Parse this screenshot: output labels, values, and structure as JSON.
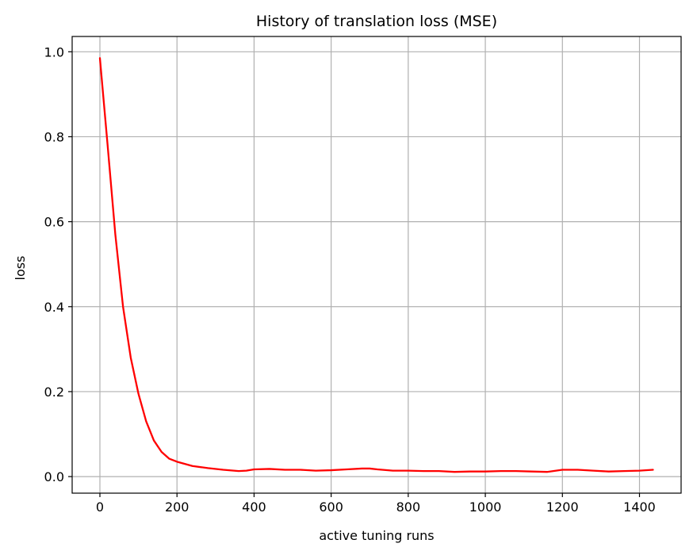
{
  "chart_data": {
    "type": "line",
    "title": "History of translation loss (MSE)",
    "xlabel": "active tuning runs",
    "ylabel": "loss",
    "xlim": [
      -72,
      1508
    ],
    "ylim": [
      -0.039,
      1.036
    ],
    "xticks": [
      0,
      200,
      400,
      600,
      800,
      1000,
      1200,
      1400
    ],
    "xtick_labels": [
      "0",
      "200",
      "400",
      "600",
      "800",
      "1000",
      "1200",
      "1400"
    ],
    "yticks": [
      0.0,
      0.2,
      0.4,
      0.6,
      0.8,
      1.0
    ],
    "ytick_labels": [
      "0.0",
      "0.2",
      "0.4",
      "0.6",
      "0.8",
      "1.0"
    ],
    "grid": true,
    "series": [
      {
        "color": "#ff0000",
        "x": [
          0,
          20,
          40,
          60,
          80,
          100,
          120,
          140,
          160,
          180,
          200,
          240,
          280,
          320,
          360,
          380,
          400,
          440,
          480,
          520,
          560,
          600,
          640,
          680,
          700,
          720,
          760,
          800,
          840,
          880,
          920,
          960,
          1000,
          1040,
          1080,
          1120,
          1160,
          1200,
          1240,
          1280,
          1320,
          1360,
          1400,
          1435
        ],
        "y": [
          0.985,
          0.78,
          0.57,
          0.4,
          0.28,
          0.195,
          0.13,
          0.085,
          0.058,
          0.042,
          0.035,
          0.025,
          0.02,
          0.016,
          0.013,
          0.014,
          0.017,
          0.018,
          0.016,
          0.016,
          0.014,
          0.015,
          0.017,
          0.019,
          0.019,
          0.017,
          0.014,
          0.014,
          0.013,
          0.013,
          0.011,
          0.012,
          0.012,
          0.013,
          0.013,
          0.012,
          0.011,
          0.016,
          0.016,
          0.014,
          0.012,
          0.013,
          0.014,
          0.016
        ]
      }
    ]
  }
}
